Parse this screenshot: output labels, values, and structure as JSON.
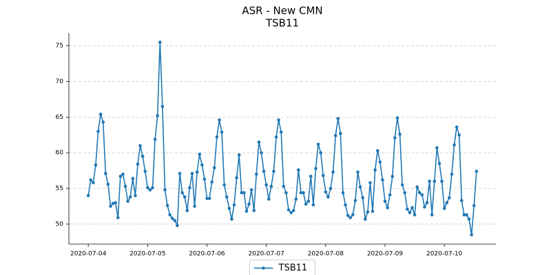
{
  "chart_data": {
    "type": "line",
    "title": "ASR - New CMN",
    "subtitle": "TSB11",
    "categories": [
      "2020-07-04",
      null,
      null,
      null,
      null,
      null,
      null,
      null,
      null,
      null,
      null,
      null,
      null,
      null,
      null,
      null,
      null,
      null,
      null,
      null,
      null,
      null,
      null,
      null,
      "2020-07-05",
      null,
      null,
      null,
      null,
      null,
      null,
      null,
      null,
      null,
      null,
      null,
      null,
      null,
      null,
      null,
      null,
      null,
      null,
      null,
      null,
      null,
      null,
      null,
      "2020-07-06",
      null,
      null,
      null,
      null,
      null,
      null,
      null,
      null,
      null,
      null,
      null,
      null,
      null,
      null,
      null,
      null,
      null,
      null,
      null,
      null,
      null,
      null,
      null,
      "2020-07-07",
      null,
      null,
      null,
      null,
      null,
      null,
      null,
      null,
      null,
      null,
      null,
      null,
      null,
      null,
      null,
      null,
      null,
      null,
      null,
      null,
      null,
      null,
      null,
      "2020-07-08",
      null,
      null,
      null,
      null,
      null,
      null,
      null,
      null,
      null,
      null,
      null,
      null,
      null,
      null,
      null,
      null,
      null,
      null,
      null,
      null,
      null,
      null,
      null,
      "2020-07-09",
      null,
      null,
      null,
      null,
      null,
      null,
      null,
      null,
      null,
      null,
      null,
      null,
      null,
      null,
      null,
      null,
      null,
      null,
      null,
      null,
      null,
      null,
      null,
      "2020-07-10",
      null,
      null,
      null,
      null,
      null,
      null,
      null,
      null,
      null,
      null,
      null,
      null,
      null
    ],
    "series": [
      {
        "name": "TSB11",
        "color": "#1f77b4",
        "values": [
          54.0,
          56.2,
          55.8,
          58.3,
          63.0,
          65.4,
          64.3,
          57.1,
          55.6,
          52.5,
          52.9,
          53.0,
          50.9,
          56.7,
          57.0,
          55.3,
          53.2,
          53.8,
          56.4,
          54.0,
          58.4,
          61.0,
          59.5,
          57.4,
          55.1,
          54.8,
          55.1,
          61.9,
          65.2,
          75.5,
          66.5,
          54.8,
          52.6,
          51.3,
          50.8,
          50.5,
          49.8,
          57.1,
          54.4,
          53.8,
          51.9,
          55.1,
          57.1,
          52.5,
          57.3,
          59.8,
          58.3,
          56.3,
          53.6,
          53.6,
          55.9,
          57.9,
          62.2,
          64.6,
          62.9,
          55.5,
          53.8,
          52.2,
          50.7,
          52.7,
          56.5,
          59.7,
          54.4,
          54.4,
          51.8,
          52.8,
          54.8,
          51.9,
          57.0,
          61.5,
          60.0,
          57.4,
          55.5,
          53.5,
          55.3,
          57.4,
          62.2,
          64.6,
          62.9,
          55.3,
          54.4,
          52.0,
          51.6,
          51.9,
          53.5,
          57.6,
          54.4,
          54.4,
          52.8,
          53.2,
          56.7,
          52.7,
          57.8,
          61.2,
          60.0,
          56.8,
          54.5,
          53.8,
          55.0,
          57.3,
          62.4,
          64.8,
          62.7,
          54.4,
          52.7,
          51.2,
          50.9,
          51.3,
          53.3,
          57.3,
          55.2,
          53.7,
          50.7,
          51.7,
          55.8,
          51.8,
          57.6,
          60.3,
          58.7,
          56.2,
          53.2,
          52.3,
          54.1,
          56.7,
          62.1,
          64.9,
          62.6,
          55.5,
          54.4,
          52.1,
          51.6,
          52.3,
          51.3,
          55.2,
          54.4,
          54.1,
          52.4,
          53.0,
          56.0,
          51.3,
          56.0,
          60.7,
          58.5,
          56.0,
          52.2,
          53.0,
          53.7,
          57.0,
          61.1,
          63.6,
          62.5,
          53.3,
          51.3,
          51.3,
          50.7,
          48.5,
          52.6,
          57.4
        ]
      }
    ],
    "ylim": [
      47.2,
      76.8
    ],
    "yticks": [
      50,
      55,
      60,
      65,
      70,
      75
    ],
    "grid": true,
    "legend": "lower center"
  }
}
